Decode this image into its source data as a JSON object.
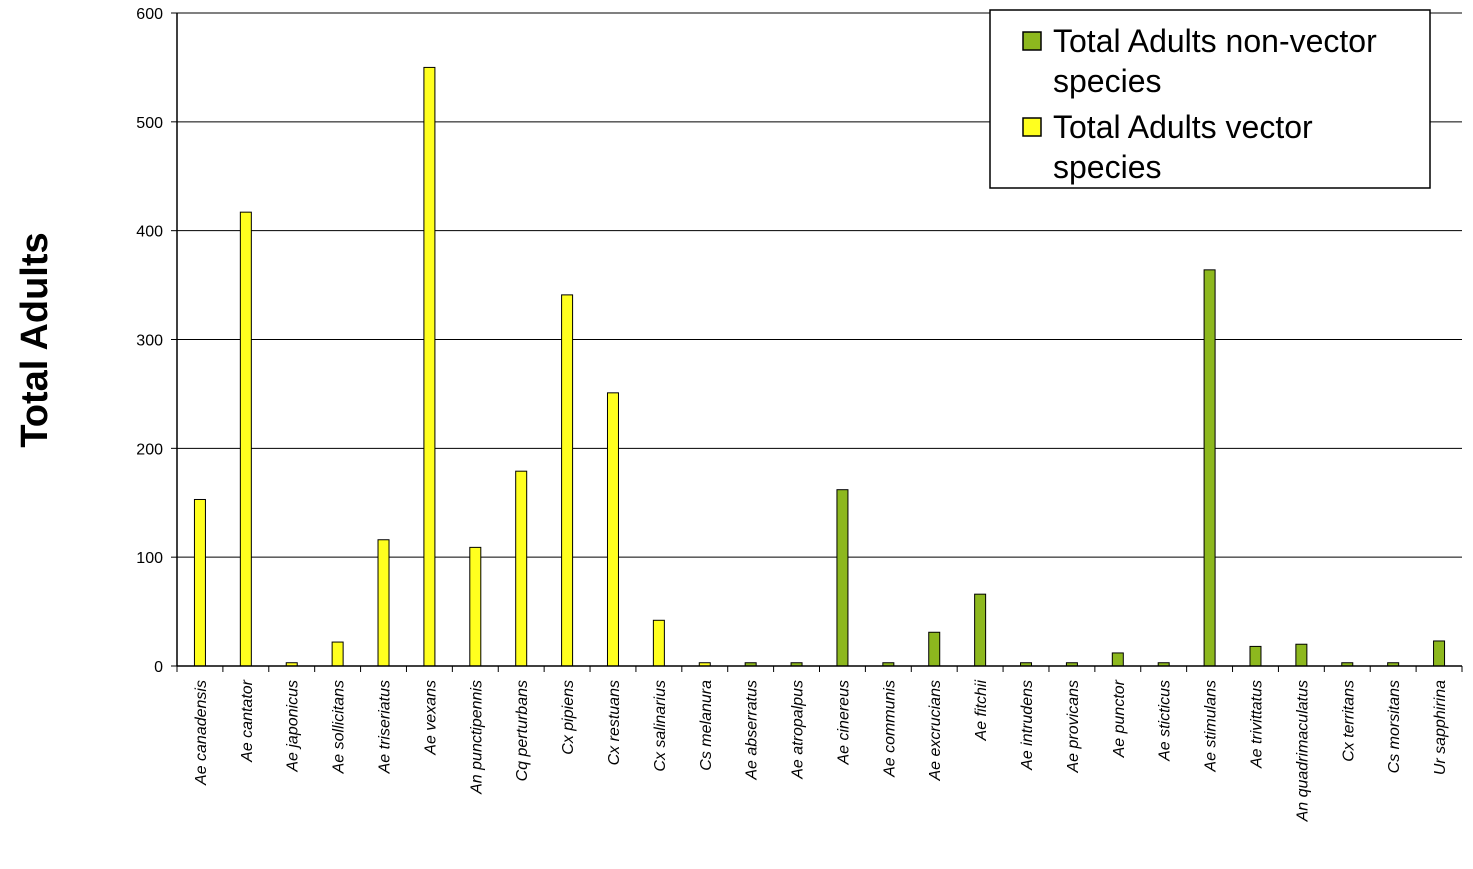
{
  "chart_data": {
    "type": "bar",
    "title": "",
    "xlabel": "",
    "ylabel": "Total Adults",
    "ylim": [
      0,
      600
    ],
    "yticks": [
      0,
      100,
      200,
      300,
      400,
      500,
      600
    ],
    "grid": "horizontal",
    "legend_position": "top-right",
    "categories": [
      "Ae canadensis",
      "Ae cantator",
      "Ae japonicus",
      "Ae sollicitans",
      "Ae triseriatus",
      "Ae vexans",
      "An punctipennis",
      "Cq perturbans",
      "Cx pipiens",
      "Cx restuans",
      "Cx salinarius",
      "Cs melanura",
      "Ae abserratus",
      "Ae atropalpus",
      "Ae cinereus",
      "Ae communis",
      "Ae excrucians",
      "Ae fitchii",
      "Ae intrudens",
      "Ae provicans",
      "Ae punctor",
      "Ae sticticus",
      "Ae stimulans",
      "Ae trivittatus",
      "An quadrimaculatus",
      "Cx territans",
      "Cs morsitans",
      "Ur sapphirina"
    ],
    "series": [
      {
        "name": "Total Adults non-vector species",
        "color": "#8db81e",
        "values": [
          0,
          0,
          0,
          0,
          0,
          0,
          0,
          0,
          0,
          0,
          0,
          0,
          3,
          3,
          162,
          3,
          31,
          66,
          3,
          3,
          12,
          3,
          364,
          18,
          20,
          3,
          3,
          23
        ]
      },
      {
        "name": "Total Adults vector species",
        "color": "#ffff1f",
        "values": [
          153,
          417,
          3,
          22,
          116,
          550,
          109,
          179,
          341,
          251,
          42,
          3,
          0,
          0,
          0,
          0,
          0,
          0,
          0,
          0,
          0,
          0,
          0,
          0,
          0,
          0,
          0,
          0
        ]
      }
    ],
    "legend": [
      {
        "line1": "Total Adults non-vector",
        "line2": "species",
        "color": "#8db81e"
      },
      {
        "line1": "Total Adults vector",
        "line2": "species",
        "color": "#ffff1f"
      }
    ]
  }
}
